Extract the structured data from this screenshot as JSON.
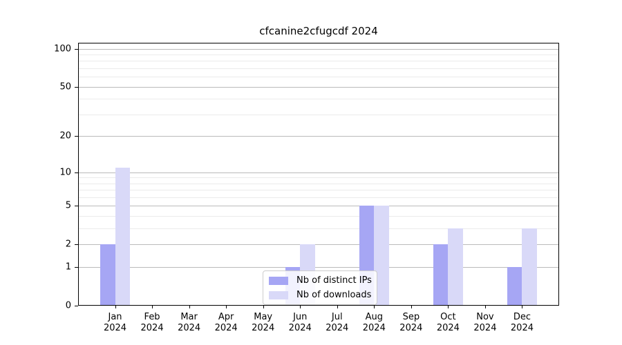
{
  "chart_data": {
    "type": "bar",
    "title": "cfcanine2cfugcdf 2024",
    "categories": [
      "Jan",
      "Feb",
      "Mar",
      "Apr",
      "May",
      "Jun",
      "Jul",
      "Aug",
      "Sep",
      "Oct",
      "Nov",
      "Dec"
    ],
    "x_sublabel": "2024",
    "series": [
      {
        "name": "Nb of distinct IPs",
        "color": "#a6a6f4",
        "values": [
          2,
          0,
          0,
          0,
          0,
          1,
          0,
          5,
          0,
          2,
          0,
          1
        ]
      },
      {
        "name": "Nb of downloads",
        "color": "#d9d9f8",
        "values": [
          11,
          0,
          0,
          0,
          0,
          2,
          0,
          5,
          0,
          3,
          0,
          3
        ]
      }
    ],
    "yscale": "log1p",
    "ylim": [
      0,
      112
    ],
    "yticks": [
      100,
      50,
      20,
      10,
      5,
      2,
      1,
      0
    ],
    "ytick_labels": [
      "100",
      "50",
      "20",
      "10",
      "5",
      "2",
      "1",
      "0"
    ],
    "minor_yticks": [
      3,
      4,
      6,
      7,
      8,
      9,
      30,
      40,
      60,
      70,
      80,
      90
    ],
    "grid": true,
    "legend_position": "lower center",
    "colors": {
      "major_grid": "#bababa",
      "minor_grid": "#ebebeb",
      "axis": "#000000",
      "text": "#000000",
      "background": "#ffffff"
    }
  }
}
